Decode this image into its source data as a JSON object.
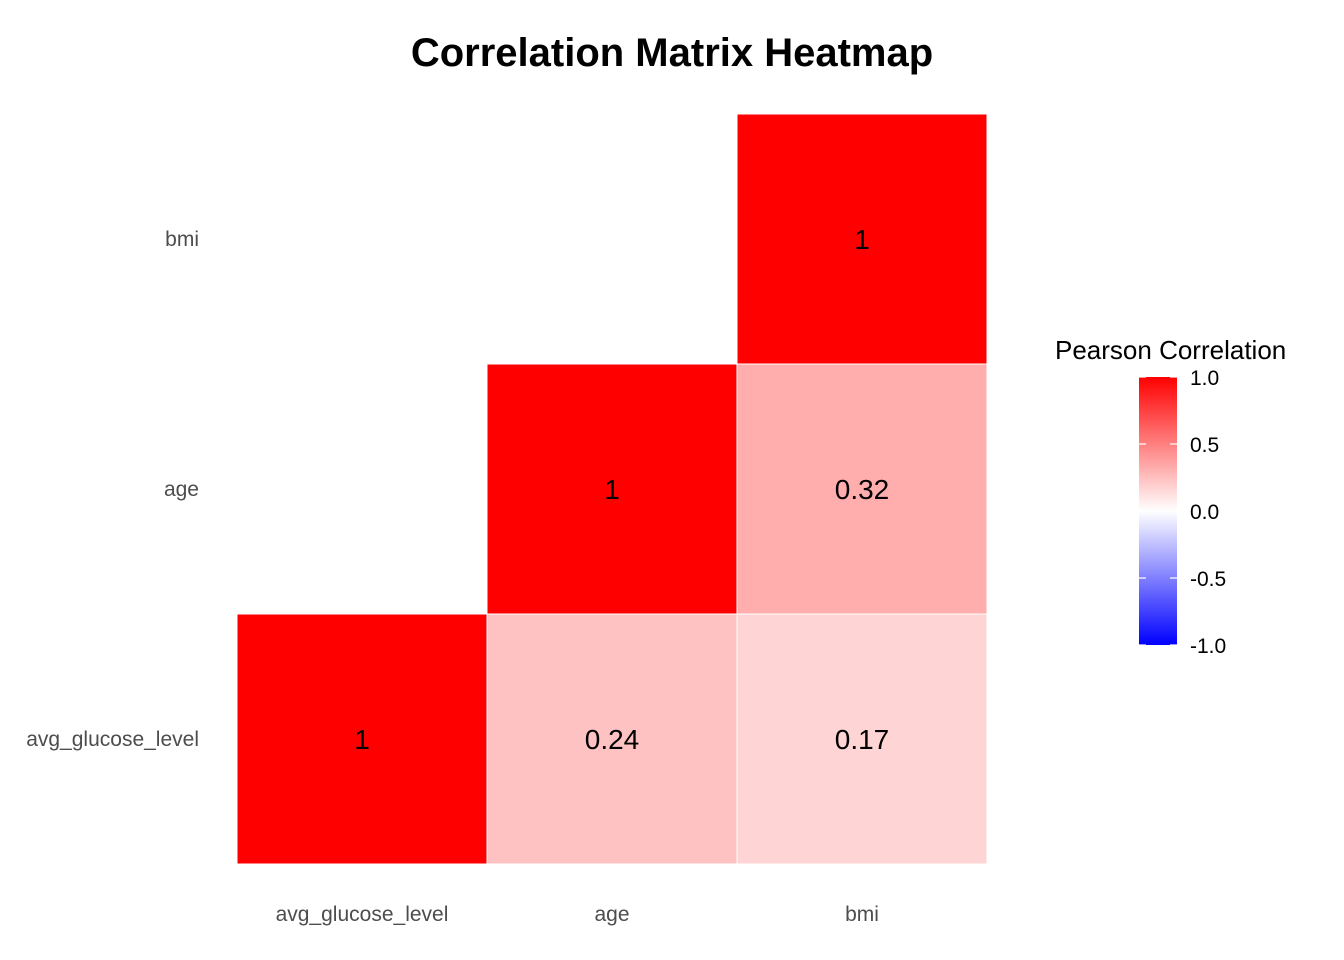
{
  "chart_data": {
    "type": "heatmap",
    "title": "Correlation Matrix Heatmap",
    "xlabel": "",
    "ylabel": "",
    "x_categories": [
      "avg_glucose_level",
      "age",
      "bmi"
    ],
    "y_categories": [
      "avg_glucose_level",
      "age",
      "bmi"
    ],
    "cells": [
      {
        "x": "avg_glucose_level",
        "y": "avg_glucose_level",
        "value": 1,
        "label": "1"
      },
      {
        "x": "age",
        "y": "avg_glucose_level",
        "value": 0.24,
        "label": "0.24"
      },
      {
        "x": "bmi",
        "y": "avg_glucose_level",
        "value": 0.17,
        "label": "0.17"
      },
      {
        "x": "age",
        "y": "age",
        "value": 1,
        "label": "1"
      },
      {
        "x": "bmi",
        "y": "age",
        "value": 0.32,
        "label": "0.32"
      },
      {
        "x": "bmi",
        "y": "bmi",
        "value": 1,
        "label": "1"
      }
    ],
    "legend": {
      "title": "Pearson Correlation",
      "placement": "right",
      "range": [
        -1,
        1
      ],
      "ticks": [
        "1.0",
        "0.5",
        "0.0",
        "-0.5",
        "-1.0"
      ],
      "tick_values": [
        1.0,
        0.5,
        0.0,
        -0.5,
        -1.0
      ],
      "low_color": "#0000ff",
      "mid_color": "#ffffff",
      "high_color": "#ff0000"
    },
    "grid": false
  }
}
